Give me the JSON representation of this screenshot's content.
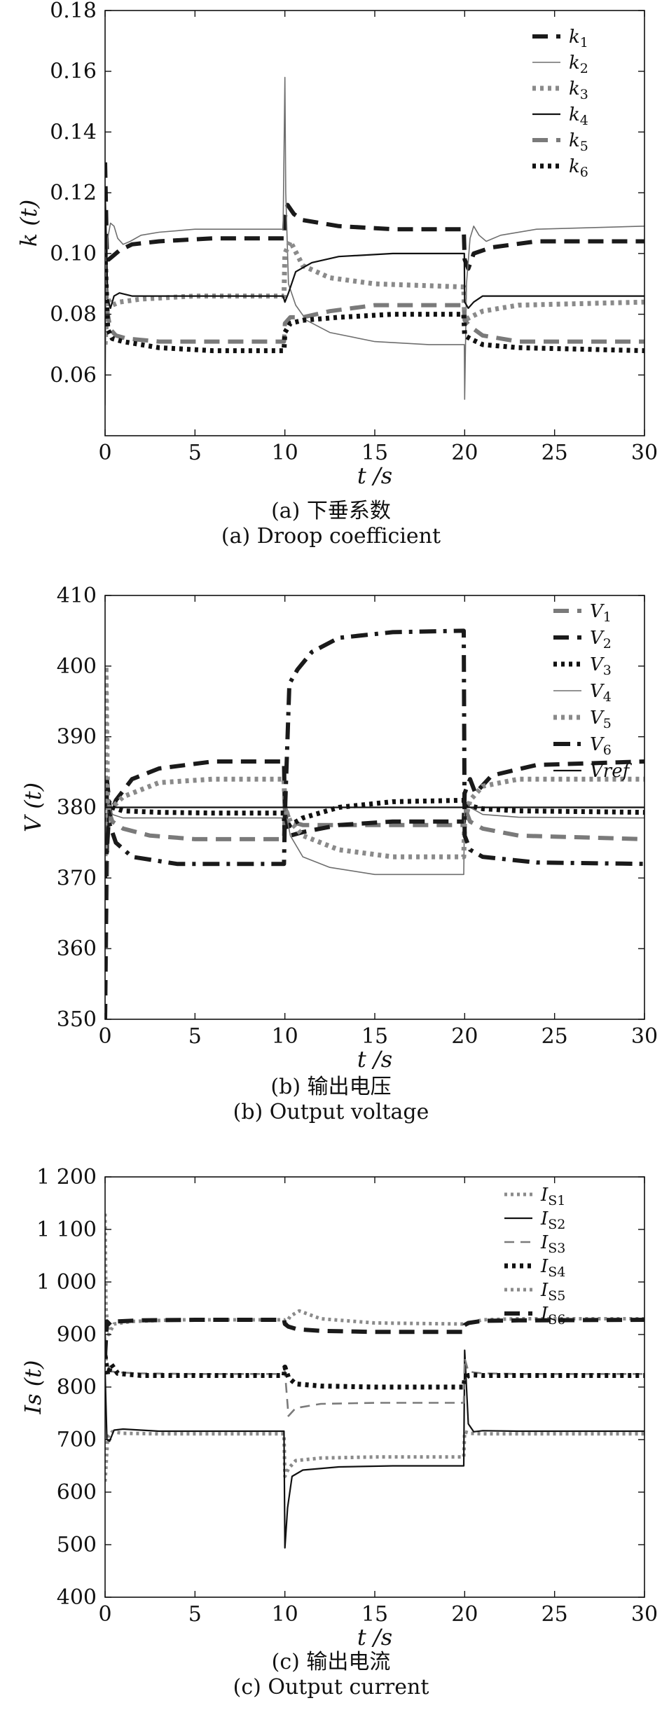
{
  "chart_data": [
    {
      "type": "line",
      "id": "a",
      "xlabel": "t /s",
      "ylabel": "k (t)",
      "xlim": [
        0,
        30
      ],
      "ylim": [
        0.04,
        0.18
      ],
      "xticks": [
        0,
        5,
        10,
        15,
        20,
        25,
        30
      ],
      "xtick_labels": [
        "0",
        "5",
        "10",
        "15",
        "20",
        "25",
        "30"
      ],
      "yticks": [
        0.06,
        0.08,
        0.1,
        0.12,
        0.14,
        0.16,
        0.18
      ],
      "ytick_labels": [
        "0.06",
        "0.08",
        "0.10",
        "0.12",
        "0.14",
        "0.16",
        "0.18"
      ],
      "legend_position": "top-right",
      "captions": [
        "(a) 下垂系数",
        "(a) Droop coefficient"
      ],
      "series": [
        {
          "name": "k1",
          "style": "dashed-thick",
          "color": "#1a1a1a",
          "x": [
            0,
            0.1,
            0.2,
            0.4,
            0.8,
            1.5,
            3,
            6,
            9.95,
            10.0,
            10.15,
            10.5,
            11,
            13,
            16,
            19.95,
            20.0,
            20.2,
            20.5,
            21.5,
            24,
            27,
            30
          ],
          "y": [
            0.13,
            0.1,
            0.098,
            0.099,
            0.101,
            0.103,
            0.104,
            0.105,
            0.105,
            0.112,
            0.116,
            0.113,
            0.111,
            0.109,
            0.108,
            0.108,
            0.098,
            0.095,
            0.1,
            0.102,
            0.104,
            0.104,
            0.104
          ]
        },
        {
          "name": "k2",
          "style": "solid-thin",
          "color": "#6e6e6e",
          "x": [
            0,
            0.05,
            0.15,
            0.3,
            0.5,
            0.7,
            1.0,
            1.4,
            2,
            3,
            5,
            9.9,
            10.0,
            10.05,
            10.2,
            10.6,
            11.2,
            12.5,
            15,
            18,
            19.98,
            20.0,
            20.1,
            20.3,
            20.5,
            20.8,
            21.2,
            22,
            24,
            30
          ],
          "y": [
            0.05,
            0.09,
            0.105,
            0.11,
            0.109,
            0.105,
            0.103,
            0.104,
            0.106,
            0.107,
            0.108,
            0.108,
            0.158,
            0.12,
            0.09,
            0.083,
            0.078,
            0.074,
            0.071,
            0.07,
            0.07,
            0.052,
            0.09,
            0.105,
            0.109,
            0.106,
            0.104,
            0.106,
            0.108,
            0.109
          ]
        },
        {
          "name": "k3",
          "style": "dotted-thick",
          "color": "#8a8a8a",
          "x": [
            0,
            0.15,
            0.4,
            0.8,
            2,
            5,
            9.95,
            10.0,
            10.3,
            11,
            12.5,
            15,
            19.95,
            20.0,
            20.3,
            21,
            23,
            30
          ],
          "y": [
            0.07,
            0.085,
            0.083,
            0.084,
            0.085,
            0.086,
            0.086,
            0.1,
            0.104,
            0.096,
            0.092,
            0.09,
            0.089,
            0.078,
            0.079,
            0.081,
            0.083,
            0.084
          ]
        },
        {
          "name": "k4",
          "style": "solid",
          "color": "#111111",
          "x": [
            0,
            0.15,
            0.3,
            0.5,
            0.8,
            1.5,
            4,
            9.9,
            10.0,
            10.2,
            10.6,
            11.5,
            13,
            16,
            19.98,
            20.0,
            20.2,
            20.5,
            21,
            22,
            25,
            30
          ],
          "y": [
            0.12,
            0.085,
            0.082,
            0.086,
            0.087,
            0.086,
            0.086,
            0.086,
            0.084,
            0.087,
            0.094,
            0.097,
            0.099,
            0.1,
            0.1,
            0.084,
            0.082,
            0.084,
            0.086,
            0.086,
            0.086,
            0.086
          ]
        },
        {
          "name": "k5",
          "style": "dashed-thick",
          "color": "#7a7a7a",
          "x": [
            0,
            0.15,
            0.3,
            0.6,
            1.2,
            3,
            6,
            9.95,
            10.0,
            10.3,
            11,
            12.5,
            15,
            19.95,
            20.0,
            20.3,
            21,
            23,
            30
          ],
          "y": [
            0.09,
            0.08,
            0.075,
            0.073,
            0.072,
            0.071,
            0.071,
            0.071,
            0.077,
            0.079,
            0.079,
            0.081,
            0.083,
            0.083,
            0.078,
            0.076,
            0.073,
            0.071,
            0.071
          ]
        },
        {
          "name": "k6",
          "style": "dotted-thick",
          "color": "#111111",
          "x": [
            0,
            0.15,
            0.4,
            1,
            3,
            6,
            9.95,
            10.0,
            10.3,
            11,
            13,
            16,
            19.95,
            20.0,
            20.3,
            21,
            23,
            30
          ],
          "y": [
            0.1,
            0.075,
            0.072,
            0.071,
            0.069,
            0.068,
            0.068,
            0.074,
            0.077,
            0.078,
            0.079,
            0.08,
            0.08,
            0.073,
            0.072,
            0.07,
            0.069,
            0.068
          ]
        }
      ]
    },
    {
      "type": "line",
      "id": "b",
      "xlabel": "t /s",
      "ylabel": "V (t)",
      "xlim": [
        0,
        30
      ],
      "ylim": [
        350,
        410
      ],
      "xticks": [
        0,
        5,
        10,
        15,
        20,
        25,
        30
      ],
      "xtick_labels": [
        "0",
        "5",
        "10",
        "15",
        "20",
        "25",
        "30"
      ],
      "yticks": [
        350,
        360,
        370,
        380,
        390,
        400,
        410
      ],
      "ytick_labels": [
        "350",
        "360",
        "370",
        "380",
        "390",
        "400",
        "410"
      ],
      "legend_position": "top-right",
      "captions": [
        "(b) 输出电压",
        "(b) Output voltage"
      ],
      "series": [
        {
          "name": "V1",
          "style": "dashed-thick",
          "color": "#7a7a7a",
          "x": [
            0,
            0.15,
            0.4,
            1,
            2.5,
            5,
            9.95,
            10.0,
            10.3,
            11,
            13,
            16,
            19.95,
            20.0,
            20.3,
            21,
            23,
            30
          ],
          "y": [
            350,
            380,
            378,
            377,
            376,
            375.5,
            375.5,
            380,
            378,
            377.5,
            377.5,
            377.5,
            377.5,
            380,
            378,
            377,
            376,
            375.5
          ]
        },
        {
          "name": "V2",
          "style": "dashed-thick",
          "color": "#1a1a1a",
          "x": [
            0,
            0.1,
            0.3,
            0.6,
            1.5,
            3,
            6,
            9.95,
            10.0,
            10.3,
            11,
            13,
            16,
            19.95,
            20.0,
            20.3,
            20.6,
            21.5,
            24,
            30
          ],
          "y": [
            350,
            384,
            379,
            381,
            384,
            385.5,
            386.5,
            386.5,
            379,
            376,
            376.5,
            377.5,
            378,
            378,
            382,
            384,
            382,
            384.5,
            386,
            386.5
          ]
        },
        {
          "name": "V3",
          "style": "dotted-thick",
          "color": "#111111",
          "x": [
            0,
            0.15,
            0.4,
            1,
            3,
            6,
            9.95,
            10.0,
            10.3,
            11,
            13,
            16,
            19.95,
            20.0,
            20.3,
            21,
            23,
            30
          ],
          "y": [
            380,
            381,
            380,
            379.5,
            379.3,
            379.2,
            379.2,
            377,
            377.5,
            378.5,
            380,
            380.8,
            381,
            380.5,
            380.2,
            379.8,
            379.5,
            379.3
          ]
        },
        {
          "name": "V4",
          "style": "solid-thin",
          "color": "#6e6e6e",
          "x": [
            0,
            0.15,
            0.4,
            1,
            3,
            6,
            9.95,
            10.0,
            10.3,
            11,
            12.5,
            15,
            19.95,
            20.0,
            20.3,
            21,
            23,
            30
          ],
          "y": [
            375,
            381,
            379,
            378.5,
            378.5,
            378.5,
            378.5,
            380,
            376,
            373,
            371.5,
            370.5,
            370.5,
            381,
            380,
            379,
            378.6,
            378.5
          ]
        },
        {
          "name": "V5",
          "style": "dotted-thick",
          "color": "#8a8a8a",
          "x": [
            0,
            0.05,
            0.15,
            0.4,
            1,
            3,
            6,
            9.95,
            10.0,
            10.3,
            11,
            13,
            16,
            19.95,
            20.0,
            20.3,
            21,
            23,
            30
          ],
          "y": [
            372,
            400,
            380,
            380,
            381.5,
            383.5,
            384,
            384,
            380,
            378,
            376,
            374,
            373,
            373,
            378,
            381,
            383,
            384,
            384
          ]
        },
        {
          "name": "V6",
          "style": "dashdot-thick",
          "color": "#1a1a1a",
          "x": [
            0,
            0.2,
            0.6,
            1.5,
            4,
            9.95,
            10.0,
            10.25,
            10.7,
            11.5,
            13,
            16,
            19.95,
            20.0,
            20.3,
            21,
            24,
            30
          ],
          "y": [
            370,
            378,
            375,
            373,
            372,
            372,
            379,
            397.5,
            399.5,
            402,
            404,
            404.8,
            405,
            376,
            374,
            373,
            372.2,
            372
          ]
        },
        {
          "name": "Vref",
          "style": "solid",
          "color": "#111111",
          "x": [
            0,
            30
          ],
          "y": [
            380,
            380
          ]
        }
      ]
    },
    {
      "type": "line",
      "id": "c",
      "xlabel": "t /s",
      "ylabel": "Is (t)",
      "xlim": [
        0,
        30
      ],
      "ylim": [
        400,
        1200
      ],
      "xticks": [
        0,
        5,
        10,
        15,
        20,
        25,
        30
      ],
      "xtick_labels": [
        "0",
        "5",
        "10",
        "15",
        "20",
        "25",
        "30"
      ],
      "yticks": [
        400,
        500,
        600,
        700,
        800,
        900,
        1000,
        1100,
        1200
      ],
      "ytick_labels": [
        "400",
        "500",
        "600",
        "700",
        "800",
        "900",
        "1 000",
        "1 100",
        "1 200"
      ],
      "legend_position": "top-right",
      "captions": [
        "(c) 输出电流",
        "(c) Output current"
      ],
      "series": [
        {
          "name": "IS1",
          "style": "dotted",
          "color": "#8a8a8a",
          "x": [
            0,
            0.15,
            0.4,
            1,
            3,
            6,
            9.95,
            10.0,
            10.2,
            10.6,
            12,
            15,
            19.95,
            20.0,
            20.3,
            21,
            23,
            30
          ],
          "y": [
            620,
            705,
            715,
            712,
            711,
            711,
            711,
            630,
            645,
            660,
            665,
            667,
            667,
            715,
            712,
            711,
            711,
            711
          ]
        },
        {
          "name": "IS2",
          "style": "solid",
          "color": "#111111",
          "x": [
            0,
            0.1,
            0.25,
            0.5,
            1,
            3,
            6,
            9.95,
            10.0,
            10.15,
            10.4,
            11,
            13,
            16,
            19.95,
            20.0,
            20.2,
            20.5,
            21,
            23,
            30
          ],
          "y": [
            830,
            700,
            697,
            718,
            720,
            716,
            716,
            716,
            494,
            570,
            630,
            642,
            648,
            650,
            650,
            870,
            730,
            715,
            717,
            716,
            716
          ]
        },
        {
          "name": "IS3",
          "style": "dashed",
          "color": "#7a7a7a",
          "x": [
            0,
            0.1,
            0.3,
            0.7,
            2,
            5,
            9.95,
            10.0,
            10.2,
            10.6,
            12,
            15,
            19.95,
            20.0,
            20.2,
            20.5,
            21,
            23,
            30
          ],
          "y": [
            900,
            850,
            830,
            828,
            826,
            825,
            825,
            830,
            745,
            760,
            768,
            770,
            770,
            855,
            830,
            828,
            826,
            825,
            825
          ]
        },
        {
          "name": "IS4",
          "style": "dotted-thick",
          "color": "#111111",
          "x": [
            0,
            0.15,
            0.35,
            0.7,
            2,
            5,
            9.95,
            10.0,
            10.2,
            10.6,
            12,
            15,
            19.95,
            20.0,
            20.2,
            20.5,
            21,
            23,
            30
          ],
          "y": [
            860,
            823,
            843,
            826,
            822,
            822,
            822,
            838,
            818,
            806,
            802,
            800,
            800,
            815,
            822,
            823,
            822,
            822,
            822
          ]
        },
        {
          "name": "IS5",
          "style": "dotted",
          "color": "#8a8a8a",
          "x": [
            0,
            0.05,
            0.2,
            0.5,
            1.5,
            4,
            9.95,
            10.0,
            10.3,
            10.8,
            12,
            15,
            19.95,
            20.0,
            20.3,
            21,
            23,
            30
          ],
          "y": [
            1130,
            950,
            900,
            920,
            925,
            928,
            928,
            918,
            935,
            945,
            930,
            922,
            920,
            918,
            922,
            928,
            930,
            930
          ]
        },
        {
          "name": "IS6",
          "style": "dashed-thick",
          "color": "#1a1a1a",
          "x": [
            0,
            0.1,
            0.3,
            0.7,
            2,
            5,
            9.95,
            10.0,
            10.2,
            10.7,
            12,
            15,
            19.95,
            20.0,
            20.2,
            21,
            23,
            30
          ],
          "y": [
            860,
            925,
            918,
            925,
            927,
            928,
            928,
            920,
            915,
            910,
            907,
            905,
            905,
            918,
            922,
            926,
            927,
            928
          ]
        }
      ]
    }
  ]
}
